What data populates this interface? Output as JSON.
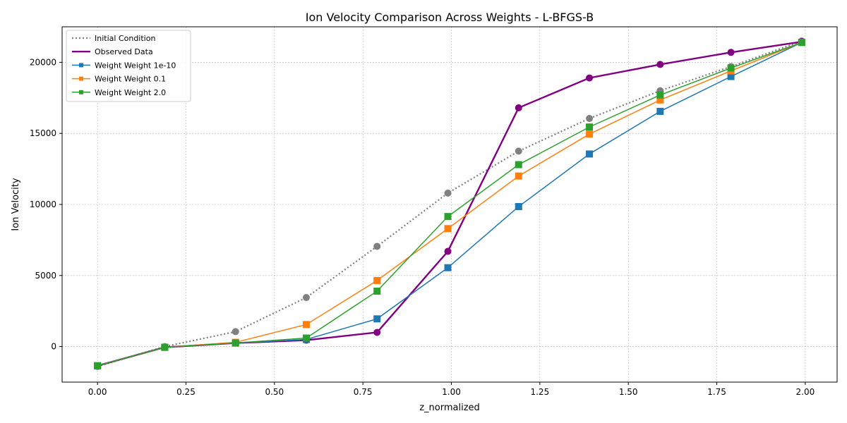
{
  "chart_data": {
    "type": "line",
    "title": "Ion Velocity Comparison Across Weights - L-BFGS-B",
    "xlabel": "z_normalized",
    "ylabel": "Ion Velocity",
    "xlim": [
      -0.1,
      2.09
    ],
    "ylim": [
      -2500,
      22500
    ],
    "xticks": [
      "0.00",
      "0.25",
      "0.50",
      "0.75",
      "1.00",
      "1.25",
      "1.50",
      "1.75",
      "2.00"
    ],
    "yticks": [
      "0",
      "5000",
      "10000",
      "15000",
      "20000"
    ],
    "grid": true,
    "legend_position": "top-left",
    "x": [
      0.0,
      0.19,
      0.39,
      0.59,
      0.79,
      0.99,
      1.19,
      1.39,
      1.59,
      1.79,
      1.99
    ],
    "series": [
      {
        "name": "Initial Condition",
        "style": "dotted",
        "marker": "circle",
        "color": "#808080",
        "values": [
          -1400,
          0,
          1050,
          3450,
          7050,
          10800,
          13750,
          16050,
          18000,
          19700,
          21500
        ]
      },
      {
        "name": "Observed Data",
        "style": "solid-thick",
        "marker": "circle",
        "color": "#800080",
        "values": [
          -1350,
          -50,
          250,
          450,
          1000,
          6700,
          16800,
          18900,
          19850,
          20700,
          21450
        ]
      },
      {
        "name": "Weight Weight 1e-10",
        "style": "solid",
        "marker": "square",
        "color": "#1f77b4",
        "values": [
          -1350,
          -50,
          250,
          500,
          1950,
          5550,
          9850,
          13550,
          16550,
          19000,
          21400
        ]
      },
      {
        "name": "Weight Weight 0.1",
        "style": "solid",
        "marker": "square",
        "color": "#ff7f0e",
        "values": [
          -1350,
          -50,
          300,
          1550,
          4650,
          8300,
          12000,
          14950,
          17350,
          19400,
          21400
        ]
      },
      {
        "name": "Weight Weight 2.0",
        "style": "solid",
        "marker": "square",
        "color": "#2ca02c",
        "values": [
          -1350,
          -50,
          250,
          600,
          3900,
          9150,
          12800,
          15450,
          17700,
          19600,
          21400
        ]
      }
    ]
  }
}
